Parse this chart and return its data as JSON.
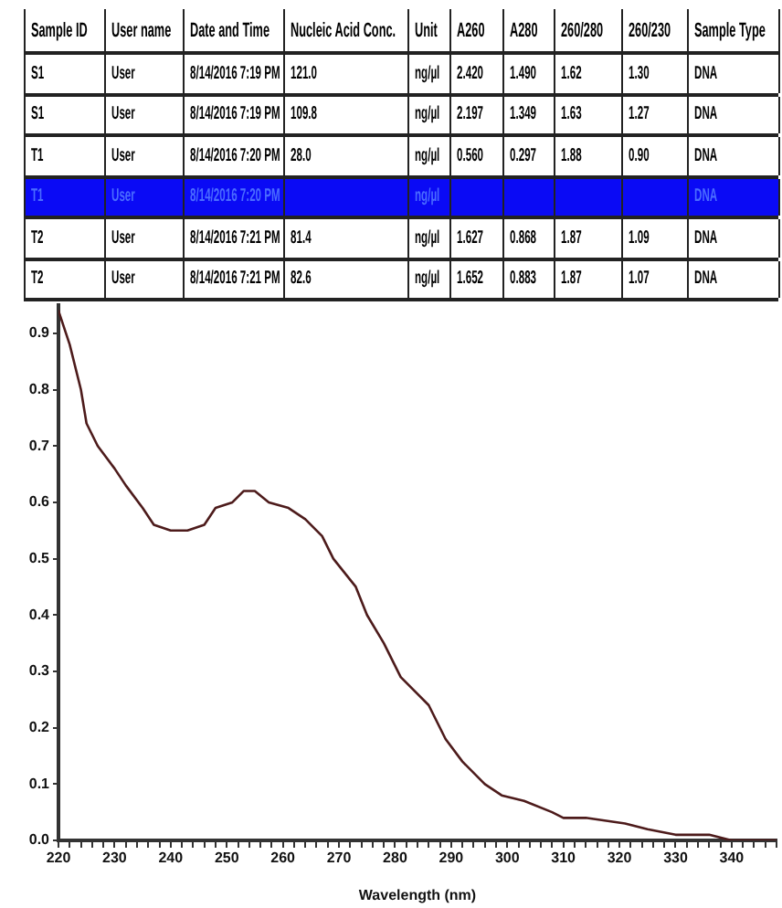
{
  "chart_data": [
    {
      "type": "other",
      "categories": [
        "Sample ID",
        "User name",
        "Date and Time",
        "Nucleic Acid Conc.",
        "Unit",
        "A260",
        "A280",
        "260/280",
        "260/230",
        "Sample Type"
      ],
      "cell_labels": [
        [
          "S1",
          "User",
          "8/14/2016 7:19 PM",
          "121.0",
          "ng/µl",
          "2.420",
          "1.490",
          "1.62",
          "1.30",
          "DNA"
        ],
        [
          "S1",
          "User",
          "8/14/2016 7:19 PM",
          "109.8",
          "ng/µl",
          "2.197",
          "1.349",
          "1.63",
          "1.27",
          "DNA"
        ],
        [
          "T1",
          "User",
          "8/14/2016 7:20 PM",
          "28.0",
          "ng/µl",
          "0.560",
          "0.297",
          "1.88",
          "0.90",
          "DNA"
        ],
        [
          "T1",
          "User",
          "8/14/2016 7:20 PM",
          null,
          "ng/µl",
          null,
          null,
          null,
          null,
          "DNA"
        ],
        [
          "T2",
          "User",
          "8/14/2016 7:21 PM",
          "81.4",
          "ng/µl",
          "1.627",
          "0.868",
          "1.87",
          "1.09",
          "DNA"
        ],
        [
          "T2",
          "User",
          "8/14/2016 7:21 PM",
          "82.6",
          "ng/µl",
          "1.652",
          "0.883",
          "1.87",
          "1.07",
          "DNA"
        ]
      ],
      "colors": [
        "#ffffff",
        "#ffffff",
        "#ffffff",
        "#0a0af5",
        "#ffffff",
        "#ffffff"
      ]
    },
    {
      "type": "line",
      "xlabel": "Wavelength (nm)",
      "x": [
        220,
        222,
        224,
        225,
        227,
        230,
        232,
        235,
        237,
        240,
        243,
        246,
        248,
        251,
        253,
        255,
        257.5,
        261,
        264,
        267,
        269,
        273,
        275,
        278,
        281,
        286,
        289,
        292,
        296,
        299,
        303,
        308,
        310,
        314,
        321,
        325,
        330,
        336,
        340,
        348
      ],
      "series": [
        {
          "color": "#4d1b1b",
          "values": [
            0.94,
            0.88,
            0.8,
            0.74,
            0.7,
            0.66,
            0.63,
            0.59,
            0.56,
            0.55,
            0.55,
            0.56,
            0.59,
            0.6,
            0.62,
            0.62,
            0.6,
            0.59,
            0.57,
            0.54,
            0.5,
            0.45,
            0.4,
            0.35,
            0.29,
            0.24,
            0.18,
            0.14,
            0.1,
            0.08,
            0.07,
            0.05,
            0.04,
            0.04,
            0.03,
            0.02,
            0.01,
            0.01,
            0.0,
            0.0
          ]
        }
      ],
      "xlim": [
        220,
        348
      ],
      "xticks": [
        220,
        {
          "value": 222,
          "label": null
        },
        {
          "value": 224,
          "label": null
        },
        {
          "value": 226,
          "label": null
        },
        {
          "value": 228,
          "label": null
        },
        230,
        {
          "value": 232,
          "label": null
        },
        {
          "value": 234,
          "label": null
        },
        {
          "value": 236,
          "label": null
        },
        {
          "value": 238,
          "label": null
        },
        240,
        {
          "value": 242,
          "label": null
        },
        {
          "value": 244,
          "label": null
        },
        {
          "value": 246,
          "label": null
        },
        {
          "value": 248,
          "label": null
        },
        250,
        {
          "value": 252,
          "label": null
        },
        {
          "value": 254,
          "label": null
        },
        {
          "value": 256,
          "label": null
        },
        {
          "value": 258,
          "label": null
        },
        260,
        {
          "value": 262,
          "label": null
        },
        {
          "value": 264,
          "label": null
        },
        {
          "value": 266,
          "label": null
        },
        {
          "value": 268,
          "label": null
        },
        270,
        {
          "value": 272,
          "label": null
        },
        {
          "value": 274,
          "label": null
        },
        {
          "value": 276,
          "label": null
        },
        {
          "value": 278,
          "label": null
        },
        280,
        {
          "value": 282,
          "label": null
        },
        {
          "value": 284,
          "label": null
        },
        {
          "value": 286,
          "label": null
        },
        {
          "value": 288,
          "label": null
        },
        290,
        {
          "value": 292,
          "label": null
        },
        {
          "value": 294,
          "label": null
        },
        {
          "value": 296,
          "label": null
        },
        {
          "value": 298,
          "label": null
        },
        300,
        {
          "value": 302,
          "label": null
        },
        {
          "value": 304,
          "label": null
        },
        {
          "value": 306,
          "label": null
        },
        {
          "value": 308,
          "label": null
        },
        310,
        {
          "value": 312,
          "label": null
        },
        {
          "value": 314,
          "label": null
        },
        {
          "value": 316,
          "label": null
        },
        {
          "value": 318,
          "label": null
        },
        320,
        {
          "value": 322,
          "label": null
        },
        {
          "value": 324,
          "label": null
        },
        {
          "value": 326,
          "label": null
        },
        {
          "value": 328,
          "label": null
        },
        330,
        {
          "value": 332,
          "label": null
        },
        {
          "value": 334,
          "label": null
        },
        {
          "value": 336,
          "label": null
        },
        {
          "value": 338,
          "label": null
        },
        340,
        {
          "value": 342,
          "label": null
        },
        {
          "value": 344,
          "label": null
        },
        {
          "value": 346,
          "label": null
        },
        {
          "value": 348,
          "label": null
        }
      ],
      "ylim": [
        0,
        0.95
      ],
      "yticks": [
        {
          "value": 0,
          "label": "0.0"
        },
        0.1,
        0.2,
        0.3,
        0.4,
        0.5,
        0.6,
        0.7,
        0.8,
        0.9
      ]
    }
  ]
}
